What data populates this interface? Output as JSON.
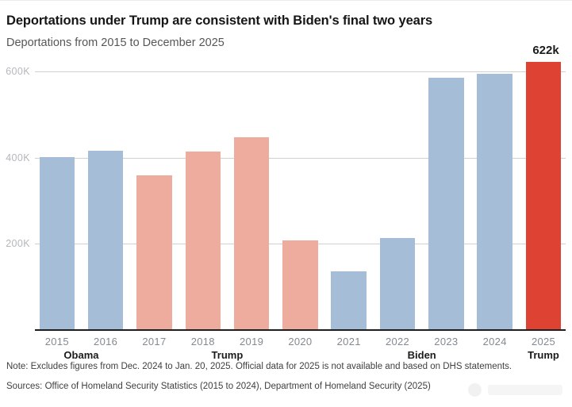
{
  "header": {
    "title": "Deportations under Trump are consistent with Biden's final two years",
    "subtitle": "Deportations from 2015 to December 2025"
  },
  "chart_data": {
    "type": "bar",
    "title": "Deportations under Trump are consistent with Biden's final two years",
    "subtitle": "Deportations from 2015 to December 2025",
    "unit": "thousands of deportations",
    "categories": [
      "2015",
      "2016",
      "2017",
      "2018",
      "2019",
      "2020",
      "2021",
      "2022",
      "2023",
      "2024",
      "2025"
    ],
    "values": [
      402,
      417,
      360,
      415,
      447,
      208,
      136,
      213,
      586,
      595,
      622
    ],
    "bar_groups": [
      "obama",
      "obama",
      "trump-first-term",
      "trump-first-term",
      "trump-first-term",
      "trump-first-term",
      "biden",
      "biden",
      "biden",
      "biden",
      "trump-2025"
    ],
    "palette": {
      "obama": "#a6bdd8",
      "trump-first-term": "#eeac9f",
      "biden": "#a6bdd8",
      "trump-2025": "#dd4232"
    },
    "president_groups": [
      {
        "label": "Obama",
        "from": 0,
        "to": 1
      },
      {
        "label": "Trump",
        "from": 2,
        "to": 5
      },
      {
        "label": "Biden",
        "from": 6,
        "to": 9
      },
      {
        "label": "Trump",
        "from": 10,
        "to": 10
      }
    ],
    "annotation": {
      "text": "622k",
      "bar_index": 10,
      "value": 622
    },
    "y_ticks": [
      {
        "value": 200,
        "label": "200K"
      },
      {
        "value": 400,
        "label": "400K"
      },
      {
        "value": 600,
        "label": "600K"
      }
    ],
    "ylim": [
      0,
      645
    ],
    "grid": "horizontal",
    "legend": "none"
  },
  "footer": {
    "note": "Note: Excludes figures from Dec. 2024 to Jan. 20, 2025. Official data for 2025 is not available and based on DHS statements.",
    "sources": "Sources: Office of Homeland Security Statistics (2015 to 2024), Department of Homeland Security (2025)"
  },
  "colors": {
    "title": "#161616",
    "subtitle": "#565656",
    "axis_line": "#1e1e1e",
    "gridline": "#d0d0d0",
    "y_tick_label": "#b3b7bc",
    "year_label": "#838a93",
    "president_label": "#1a1a1a",
    "annotation": "#1c1c1c",
    "footnote": "#3f3f3f"
  }
}
